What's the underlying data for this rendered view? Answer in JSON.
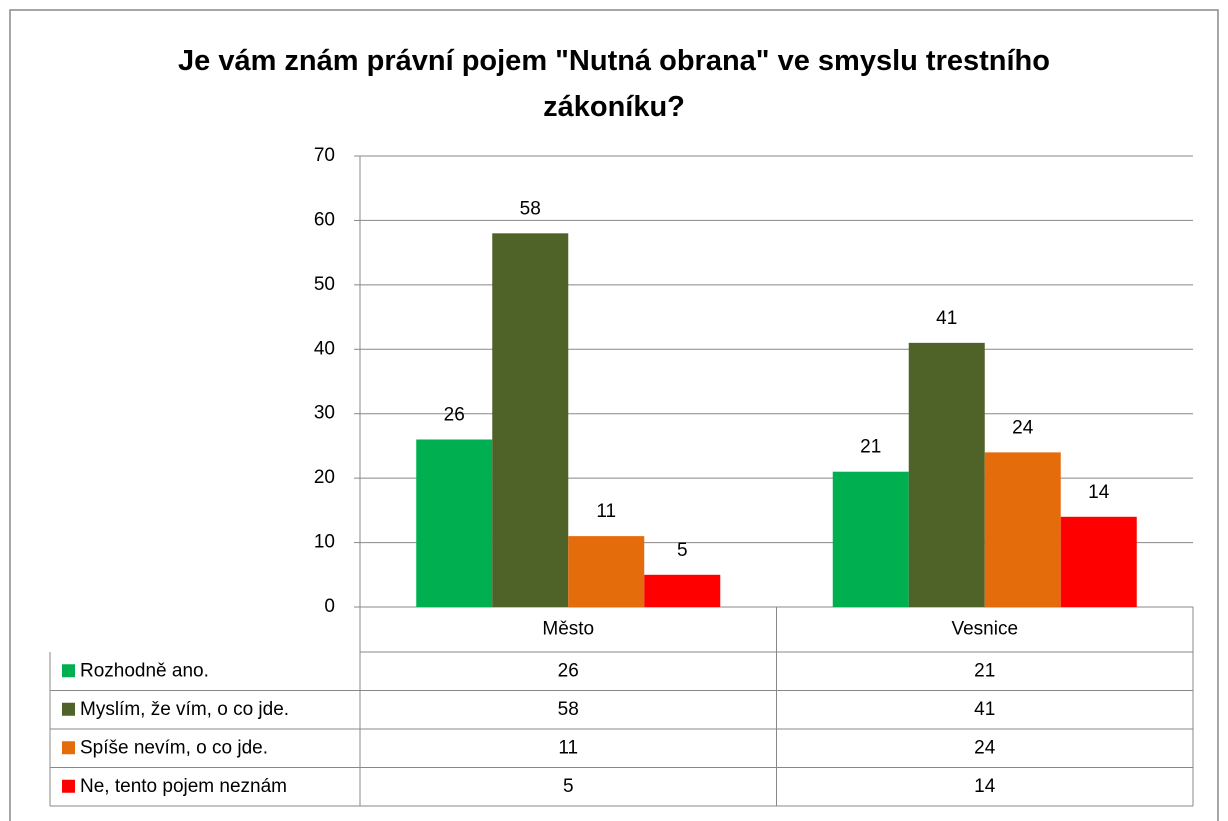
{
  "chart_data": {
    "type": "bar",
    "title": "Je vám znám právní pojem \"Nutná obrana\" ve smyslu trestního zákoníku?",
    "categories": [
      "Město",
      "Vesnice"
    ],
    "series": [
      {
        "name": "Rozhodně ano.",
        "color": "#00b050",
        "values": [
          26,
          21
        ]
      },
      {
        "name": "Myslím, že vím, o co jde.",
        "color": "#4f6228",
        "values": [
          58,
          41
        ]
      },
      {
        "name": "Spíše nevím, o co jde.",
        "color": "#e46c0a",
        "values": [
          11,
          24
        ]
      },
      {
        "name": "Ne, tento pojem neznám",
        "color": "#ff0000",
        "values": [
          5,
          14
        ]
      }
    ],
    "ylim": [
      0,
      70
    ],
    "yticks": [
      0,
      10,
      20,
      30,
      40,
      50,
      60,
      70
    ],
    "grid": true
  }
}
